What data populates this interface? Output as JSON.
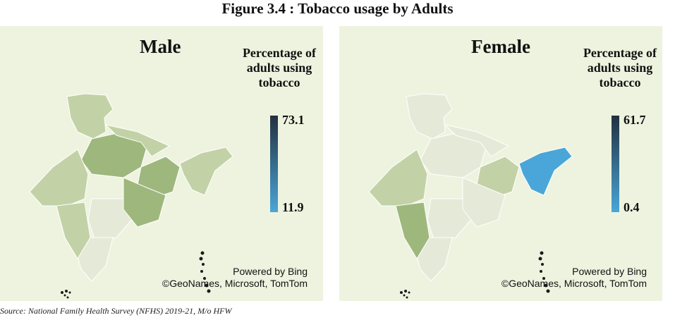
{
  "figure_title": "Figure 3.4 : Tobacco usage by Adults",
  "legend_title": "Percentage of adults using tobacco",
  "credits": [
    "Powered by Bing",
    "©GeoNames, Microsoft, TomTom"
  ],
  "source": "Source: National Family Health Survey (NFHS) 2019-21, M/o HFW",
  "colors": {
    "panel_bg": "#eef3df",
    "scale_low": "#4aa6d8",
    "scale_high": "#223040",
    "map_light": "#e4ead7",
    "map_mid": "#c2d2a6",
    "map_dark": "#9eb77d",
    "region_border": "#ffffff"
  },
  "panels": [
    {
      "name": "male",
      "title": "Male",
      "legend_max": "73.1",
      "legend_min": "11.9",
      "max_value": 73.1,
      "min_value": 11.9,
      "shading": [
        "mid",
        "dark",
        "mid",
        "dark",
        "light",
        "light",
        "mid",
        "mid",
        "dark",
        "mid"
      ]
    },
    {
      "name": "female",
      "title": "Female",
      "legend_max": "61.7",
      "legend_min": "0.4",
      "max_value": 61.7,
      "min_value": 0.4,
      "shading": [
        "light",
        "light",
        "light",
        "mid",
        "light",
        "light",
        "mid",
        "dark",
        "light",
        "blue"
      ]
    }
  ]
}
